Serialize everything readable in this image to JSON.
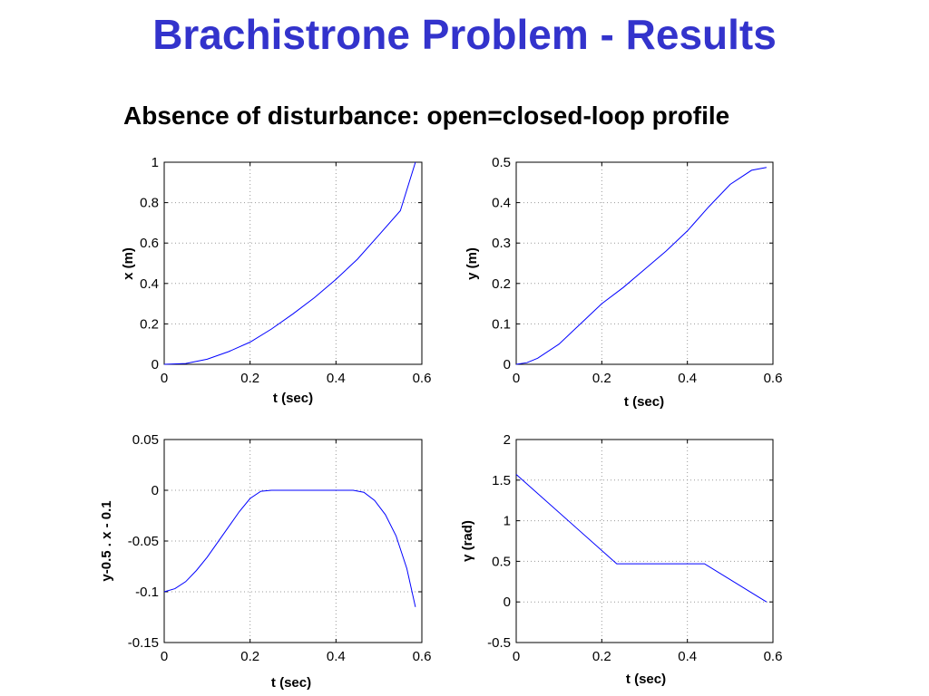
{
  "slide": {
    "title": "Brachistrone Problem - Results",
    "subtitle": "Absence of disturbance: open=closed-loop profile"
  },
  "colors": {
    "title": "#3333cc",
    "line": "#0000ff",
    "grid": "#999999"
  },
  "chart_data": [
    {
      "type": "line",
      "xlabel": "t (sec)",
      "ylabel": "x (m)",
      "xlim": [
        0,
        0.6
      ],
      "ylim": [
        0,
        1
      ],
      "xticks": [
        "0",
        "0.2",
        "0.4",
        "0.6"
      ],
      "yticks": [
        "0",
        "0.2",
        "0.4",
        "0.6",
        "0.8",
        "1"
      ],
      "grid": true,
      "series": [
        {
          "x": [
            0,
            0.05,
            0.1,
            0.15,
            0.2,
            0.25,
            0.3,
            0.35,
            0.4,
            0.45,
            0.5,
            0.55,
            0.585
          ],
          "y": [
            0,
            0.004,
            0.025,
            0.063,
            0.11,
            0.175,
            0.25,
            0.33,
            0.42,
            0.52,
            0.64,
            0.76,
            1.0
          ]
        }
      ]
    },
    {
      "type": "line",
      "xlabel": "t (sec)",
      "ylabel": "y (m)",
      "xlim": [
        0,
        0.6
      ],
      "ylim": [
        0,
        0.5
      ],
      "xticks": [
        "0",
        "0.2",
        "0.4",
        "0.6"
      ],
      "yticks": [
        "0",
        "0.1",
        "0.2",
        "0.3",
        "0.4",
        "0.5"
      ],
      "grid": true,
      "series": [
        {
          "x": [
            0,
            0.025,
            0.05,
            0.1,
            0.15,
            0.2,
            0.25,
            0.3,
            0.35,
            0.4,
            0.45,
            0.5,
            0.55,
            0.585
          ],
          "y": [
            0,
            0.004,
            0.015,
            0.05,
            0.1,
            0.15,
            0.19,
            0.235,
            0.28,
            0.33,
            0.39,
            0.445,
            0.48,
            0.487
          ]
        }
      ]
    },
    {
      "type": "line",
      "xlabel": "t (sec)",
      "ylabel": "y-0.5 . x - 0.1",
      "xlim": [
        0,
        0.6
      ],
      "ylim": [
        -0.15,
        0.05
      ],
      "xticks": [
        "0",
        "0.2",
        "0.4",
        "0.6"
      ],
      "yticks": [
        "-0.15",
        "-0.1",
        "-0.05",
        "0",
        "0.05"
      ],
      "grid": true,
      "series": [
        {
          "x": [
            0,
            0.025,
            0.05,
            0.075,
            0.1,
            0.125,
            0.15,
            0.175,
            0.2,
            0.225,
            0.25,
            0.3,
            0.35,
            0.4,
            0.44,
            0.465,
            0.49,
            0.515,
            0.54,
            0.565,
            0.585
          ],
          "y": [
            -0.1,
            -0.097,
            -0.09,
            -0.079,
            -0.066,
            -0.051,
            -0.036,
            -0.021,
            -0.008,
            -0.001,
            0,
            0,
            0,
            0,
            0,
            -0.002,
            -0.01,
            -0.024,
            -0.045,
            -0.077,
            -0.115
          ]
        }
      ]
    },
    {
      "type": "line",
      "xlabel": "t (sec)",
      "ylabel": "γ (rad)",
      "xlim": [
        0,
        0.6
      ],
      "ylim": [
        -0.5,
        2
      ],
      "xticks": [
        "0",
        "0.2",
        "0.4",
        "0.6"
      ],
      "yticks": [
        "-0.5",
        "0",
        "0.5",
        "1",
        "1.5",
        "2"
      ],
      "grid": true,
      "series": [
        {
          "x": [
            0,
            0.235,
            0.44,
            0.585
          ],
          "y": [
            1.57,
            0.47,
            0.47,
            0
          ]
        }
      ]
    }
  ]
}
